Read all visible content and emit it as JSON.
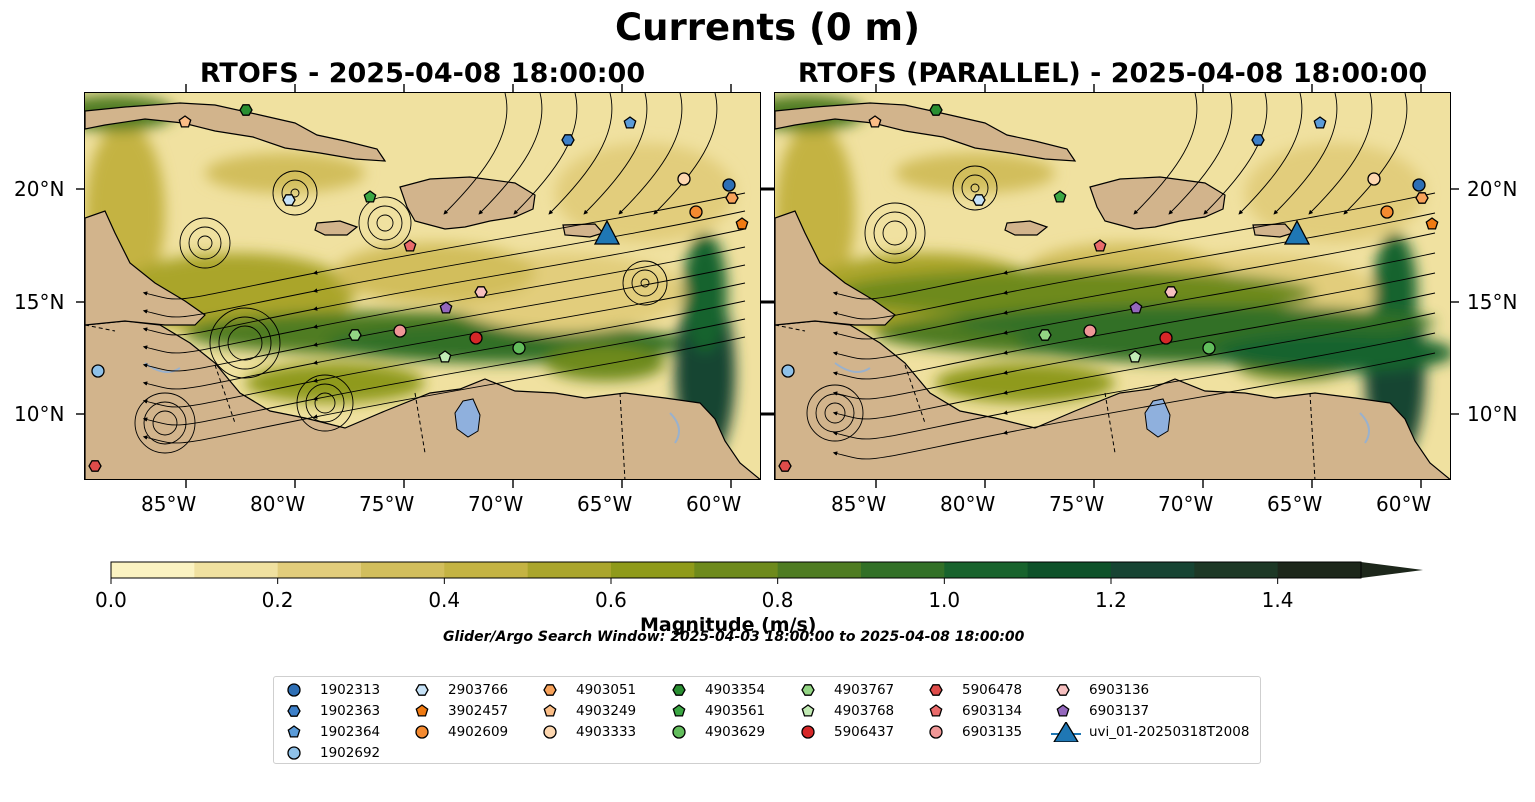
{
  "title": "Currents (0 m)",
  "panels": [
    {
      "title": "RTOFS - 2025-04-08 18:00:00"
    },
    {
      "title": "RTOFS (PARALLEL) - 2025-04-08 18:00:00"
    }
  ],
  "axes": {
    "lon_labels": [
      "85°W",
      "80°W",
      "75°W",
      "70°W",
      "65°W",
      "60°W"
    ],
    "lat_labels": [
      "20°N",
      "15°N",
      "10°N"
    ]
  },
  "colorbar": {
    "label": "Magnitude (m/s)",
    "ticks": [
      "0.0",
      "0.2",
      "0.4",
      "0.6",
      "0.8",
      "1.0",
      "1.2",
      "1.4"
    ],
    "range": [
      0.0,
      1.5
    ],
    "colors": [
      "#fbf3c2",
      "#f0e1a0",
      "#e2cd7c",
      "#d2be5c",
      "#c4b343",
      "#aaa52c",
      "#8f9a1a",
      "#6e8a1c",
      "#4f7c22",
      "#327027",
      "#18632d",
      "#0d5129",
      "#174433",
      "#1d3826",
      "#1d271b"
    ]
  },
  "search_window": "Glider/Argo Search Window: 2025-04-03 18:00:00 to 2025-04-08 18:00:00",
  "legend": [
    {
      "label": "1902313",
      "shape": "circle",
      "color": "#2e6fb5"
    },
    {
      "label": "1902363",
      "shape": "hexagon",
      "color": "#3d80c9"
    },
    {
      "label": "1902364",
      "shape": "pentagon",
      "color": "#5a9bd8"
    },
    {
      "label": "1902692",
      "shape": "circle",
      "color": "#8fc1e8"
    },
    {
      "label": "2903766",
      "shape": "hexagon",
      "color": "#c6e2f7"
    },
    {
      "label": "3902457",
      "shape": "pentagon",
      "color": "#f07a12"
    },
    {
      "label": "4902609",
      "shape": "circle",
      "color": "#f48a30"
    },
    {
      "label": "4903051",
      "shape": "hexagon",
      "color": "#f8a25a"
    },
    {
      "label": "4903249",
      "shape": "pentagon",
      "color": "#fbbd86"
    },
    {
      "label": "4903333",
      "shape": "circle",
      "color": "#fdd7b0"
    },
    {
      "label": "4903354",
      "shape": "hexagon",
      "color": "#2a8f32"
    },
    {
      "label": "4903561",
      "shape": "pentagon",
      "color": "#3ba743"
    },
    {
      "label": "4903629",
      "shape": "circle",
      "color": "#62bd5c"
    },
    {
      "label": "4903767",
      "shape": "hexagon",
      "color": "#93d584"
    },
    {
      "label": "4903768",
      "shape": "pentagon",
      "color": "#c1eab3"
    },
    {
      "label": "5906437",
      "shape": "circle",
      "color": "#d62728"
    },
    {
      "label": "5906478",
      "shape": "hexagon",
      "color": "#df4c4a"
    },
    {
      "label": "6903134",
      "shape": "pentagon",
      "color": "#ea6b6b"
    },
    {
      "label": "6903135",
      "shape": "circle",
      "color": "#f09797"
    },
    {
      "label": "6903136",
      "shape": "hexagon",
      "color": "#f7c0c0"
    },
    {
      "label": "6903137",
      "shape": "pentagon",
      "color": "#9467bd"
    },
    {
      "label": "uvi_01-20250318T2008",
      "shape": "triangle",
      "color": "#1f77b4"
    }
  ]
}
